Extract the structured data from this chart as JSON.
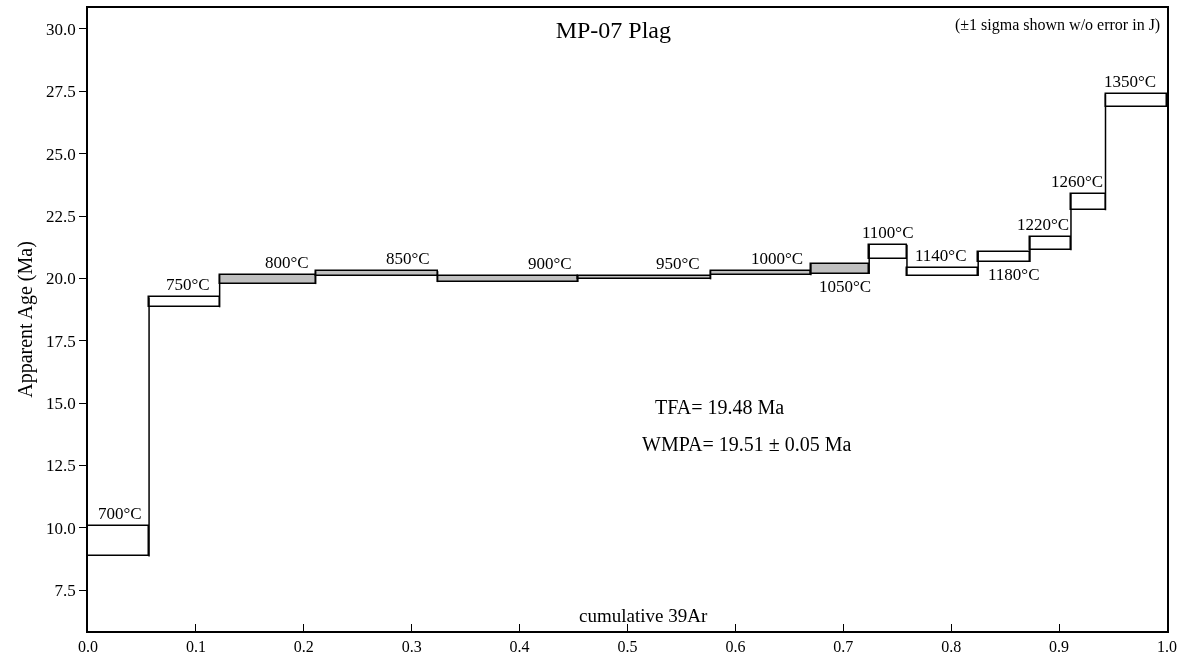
{
  "chart_data": {
    "type": "histogram",
    "title": "MP-07 Plag",
    "xlabel": "cumulative 39Ar",
    "ylabel": "Apparent Age (Ma)",
    "bins": [
      0.0,
      0.0566,
      0.122,
      0.211,
      0.324,
      0.454,
      0.577,
      0.67,
      0.724,
      0.759,
      0.825,
      0.873,
      0.911,
      0.943,
      1.0
    ],
    "values": [
      1.24,
      0.4,
      0.37,
      0.2,
      0.24,
      0.12,
      0.19,
      0.41,
      0.57,
      0.34,
      0.4,
      0.54,
      0.67,
      0.5
    ],
    "base": [
      8.85,
      18.84,
      19.77,
      20.09,
      19.85,
      19.96,
      20.12,
      20.17,
      20.78,
      20.09,
      20.66,
      21.13,
      22.73,
      26.88
    ],
    "colors": [
      "#ffffff",
      "#ffffff",
      "#c0c0c0",
      "#c0c0c0",
      "#c0c0c0",
      "#c0c0c0",
      "#c0c0c0",
      "#c0c0c0",
      "#ffffff",
      "#ffffff",
      "#ffffff",
      "#ffffff",
      "#ffffff",
      "#ffffff"
    ],
    "xlim": [
      0.0,
      1.0
    ],
    "xticks": [
      {
        "value": 0.0,
        "label": "0.0"
      },
      0.1,
      0.2,
      0.3,
      0.4,
      0.5,
      0.6,
      0.7,
      0.8,
      0.9,
      {
        "value": 1.0,
        "label": "1.0"
      }
    ],
    "ylim": [
      5.86,
      30.84
    ],
    "yticks": [
      {
        "value": 7.5,
        "label": "7.5"
      },
      {
        "value": 10,
        "label": "10.0"
      },
      {
        "value": 12.5,
        "label": "12.5"
      },
      {
        "value": 15,
        "label": "15.0"
      },
      {
        "value": 17.5,
        "label": "17.5"
      },
      {
        "value": 20,
        "label": "20.0"
      },
      {
        "value": 22.5,
        "label": "22.5"
      },
      {
        "value": 25,
        "label": "25.0"
      },
      {
        "value": 27.5,
        "label": "27.5"
      },
      {
        "value": 30,
        "label": "30.0"
      }
    ],
    "annotations": [
      "(±1 sigma shown w/o error in J)",
      "TFA= 19.48 Ma",
      "WMPA= 19.51 ± 0.05 Ma",
      {
        "text": "700°C",
        "x": 0.03,
        "y": 10.09
      },
      {
        "text": "750°C",
        "x": 0.093,
        "y": 19.24
      },
      {
        "text": "800°C",
        "x": 0.184,
        "y": 20.14
      },
      {
        "text": "850°C",
        "x": 0.297,
        "y": 20.29
      },
      {
        "text": "900°C",
        "x": 0.428,
        "y": 20.09
      },
      {
        "text": "950°C",
        "x": 0.547,
        "y": 20.08
      },
      {
        "text": "1000°C",
        "x": 0.639,
        "y": 20.31
      },
      {
        "text": "1050°C",
        "x": 0.702,
        "y": 20.17
      },
      {
        "text": "1100°C",
        "x": 0.741,
        "y": 21.35
      },
      {
        "text": "1140°C",
        "x": 0.791,
        "y": 20.43
      },
      {
        "text": "1180°C",
        "x": 0.858,
        "y": 20.66
      },
      {
        "text": "1220°C",
        "x": 0.885,
        "y": 21.67
      },
      {
        "text": "1260°C",
        "x": 0.917,
        "y": 23.4
      },
      {
        "text": "1350°C",
        "x": 0.966,
        "y": 27.38
      }
    ]
  }
}
